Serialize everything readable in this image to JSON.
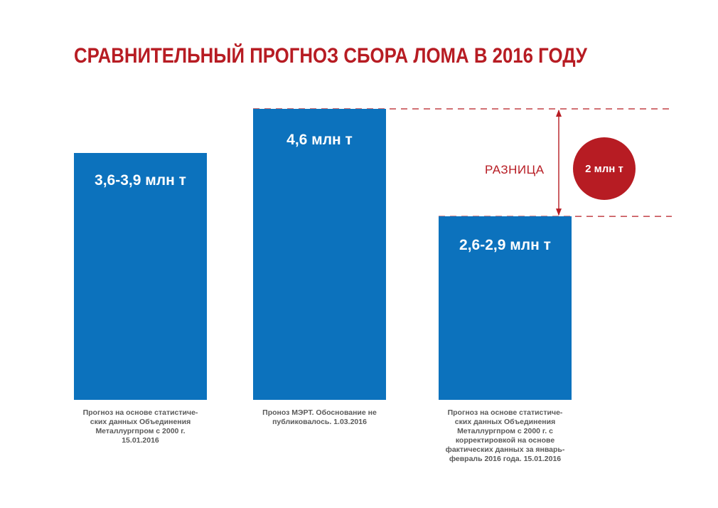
{
  "colors": {
    "bar": "#0c72bd",
    "accent": "#b71c23",
    "text": "#5a5a5a"
  },
  "chart_data": {
    "type": "bar",
    "title": "СРАВНИТЕЛЬНЫЙ ПРОГНОЗ СБОРА ЛОМА В 2016 ГОДУ",
    "ylim": [
      0,
      6
    ],
    "bars": [
      {
        "value": 3.9,
        "label": "3,6-3,9 млн т",
        "caption": "Прогноз на основе статистиче-\nских данных Объединения\nМеталлургпром с 2000 г.\n15.01.2016"
      },
      {
        "value": 4.6,
        "label": "4,6 млн т",
        "caption": "Проноз МЭРТ. Обоснование не\nпубликовалось. 1.03.2016"
      },
      {
        "value": 2.9,
        "label": "2,6-2,9 млн т",
        "caption": "Прогноз на основе статистиче-\nских данных Объединения\nМеталлургпром с 2000 г. с\nкорректировкой на основе\nфактических данных за январь-\nфевраль 2016 года. 15.01.2016"
      }
    ],
    "annotation": {
      "label": "РАЗНИЦА",
      "value": "2 млн т",
      "from_bar": 1,
      "to_bar": 2
    }
  }
}
